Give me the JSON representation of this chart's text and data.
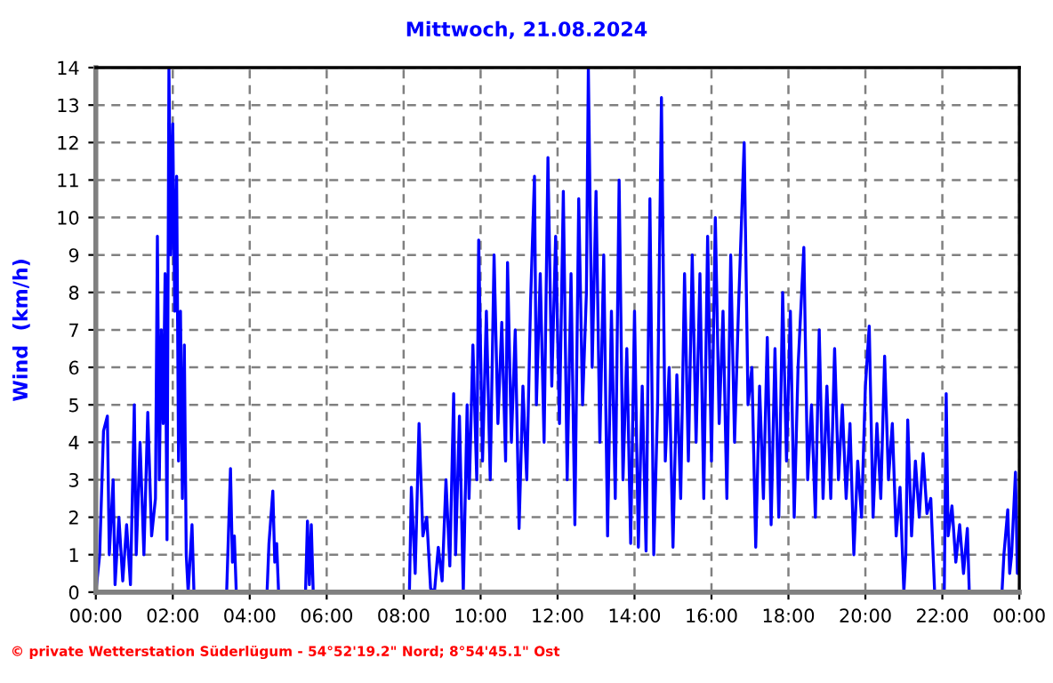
{
  "chart_data": {
    "type": "line",
    "title": "Mittwoch, 21.08.2024",
    "ylabel": "Wind  (km/h)",
    "annotations": [
      "© private Wetterstation Süderlügum - 54°52'19.2\" Nord; 8°54'45.1\" Ost"
    ],
    "xlim": [
      0,
      24
    ],
    "ylim": [
      0,
      14
    ],
    "xticks": [
      {
        "value": 0,
        "label": "00:00"
      },
      {
        "value": 2,
        "label": "02:00"
      },
      {
        "value": 4,
        "label": "04:00"
      },
      {
        "value": 6,
        "label": "06:00"
      },
      {
        "value": 8,
        "label": "08:00"
      },
      {
        "value": 10,
        "label": "10:00"
      },
      {
        "value": 12,
        "label": "12:00"
      },
      {
        "value": 14,
        "label": "14:00"
      },
      {
        "value": 16,
        "label": "16:00"
      },
      {
        "value": 18,
        "label": "18:00"
      },
      {
        "value": 20,
        "label": "20:00"
      },
      {
        "value": 22,
        "label": "22:00"
      },
      {
        "value": 24,
        "label": "00:00"
      }
    ],
    "yticks": [
      0,
      1,
      2,
      3,
      4,
      5,
      6,
      7,
      8,
      9,
      10,
      11,
      12,
      13,
      14
    ],
    "grid": true,
    "marker": "none",
    "line_style": "solid",
    "series": [
      {
        "color": "#0000ff",
        "x": [
          0.0,
          0.1,
          0.2,
          0.3,
          0.35,
          0.45,
          0.5,
          0.6,
          0.7,
          0.8,
          0.9,
          1.0,
          1.05,
          1.15,
          1.25,
          1.35,
          1.45,
          1.55,
          1.6,
          1.65,
          1.7,
          1.75,
          1.8,
          1.85,
          1.9,
          1.95,
          2.0,
          2.05,
          2.1,
          2.15,
          2.2,
          2.25,
          2.3,
          2.35,
          2.4,
          2.5,
          2.55,
          3.4,
          3.5,
          3.55,
          3.6,
          3.65,
          4.45,
          4.5,
          4.6,
          4.65,
          4.7,
          4.75,
          5.45,
          5.5,
          5.55,
          5.6,
          5.65,
          8.15,
          8.2,
          8.3,
          8.4,
          8.5,
          8.6,
          8.7,
          8.8,
          8.9,
          9.0,
          9.1,
          9.2,
          9.3,
          9.35,
          9.45,
          9.55,
          9.65,
          9.7,
          9.8,
          9.9,
          9.95,
          10.05,
          10.15,
          10.25,
          10.35,
          10.45,
          10.55,
          10.65,
          10.7,
          10.8,
          10.9,
          11.0,
          11.1,
          11.2,
          11.3,
          11.4,
          11.45,
          11.55,
          11.65,
          11.75,
          11.85,
          11.95,
          12.05,
          12.15,
          12.25,
          12.35,
          12.45,
          12.55,
          12.65,
          12.75,
          12.8,
          12.9,
          13.0,
          13.1,
          13.2,
          13.3,
          13.4,
          13.5,
          13.6,
          13.7,
          13.8,
          13.9,
          14.0,
          14.1,
          14.2,
          14.3,
          14.4,
          14.5,
          14.6,
          14.7,
          14.8,
          14.9,
          15.0,
          15.1,
          15.2,
          15.3,
          15.4,
          15.5,
          15.6,
          15.7,
          15.8,
          15.9,
          16.0,
          16.1,
          16.2,
          16.3,
          16.4,
          16.5,
          16.6,
          16.7,
          16.85,
          16.95,
          17.05,
          17.15,
          17.25,
          17.35,
          17.45,
          17.55,
          17.65,
          17.75,
          17.85,
          17.95,
          18.05,
          18.15,
          18.25,
          18.4,
          18.5,
          18.6,
          18.7,
          18.8,
          18.9,
          19.0,
          19.1,
          19.2,
          19.3,
          19.4,
          19.5,
          19.6,
          19.7,
          19.8,
          19.9,
          20.0,
          20.1,
          20.2,
          20.3,
          20.4,
          20.5,
          20.6,
          20.7,
          20.8,
          20.9,
          21.0,
          21.05,
          21.1,
          21.2,
          21.3,
          21.4,
          21.5,
          21.6,
          21.7,
          21.8,
          22.05,
          22.1,
          22.15,
          22.25,
          22.35,
          22.45,
          22.55,
          22.65,
          22.7,
          23.55,
          23.6,
          23.7,
          23.75,
          23.8,
          23.9,
          23.95,
          24.0
        ],
        "values": [
          0,
          1,
          4.3,
          4.7,
          1,
          3,
          0.2,
          2,
          0.3,
          1.8,
          0.2,
          5,
          1,
          4,
          1,
          4.8,
          1.5,
          2.5,
          9.5,
          3,
          7,
          4.5,
          8.5,
          1.4,
          14,
          9,
          12.5,
          7.5,
          11.1,
          3.5,
          7.5,
          2.5,
          6.6,
          1,
          0,
          1.8,
          0,
          0,
          3.3,
          0.8,
          1.5,
          0,
          0,
          1.3,
          2.7,
          0.8,
          1.3,
          0,
          0,
          1.9,
          0.2,
          1.8,
          0,
          0,
          2.8,
          0.5,
          4.5,
          1.5,
          2,
          0.1,
          0,
          1.2,
          0.3,
          3,
          0.7,
          5.3,
          1,
          4.7,
          0,
          5,
          2.5,
          6.6,
          3,
          9.4,
          3.5,
          7.5,
          3,
          9,
          4.5,
          7.2,
          3.5,
          8.8,
          4,
          7,
          1.7,
          5.5,
          3,
          7.8,
          11.1,
          5,
          8.5,
          4,
          11.6,
          5.5,
          9.5,
          4.5,
          10.7,
          3,
          8.5,
          1.8,
          10.5,
          5,
          8,
          14,
          6,
          10.7,
          4,
          9,
          1.5,
          7.5,
          2.5,
          11,
          3,
          6.5,
          1.3,
          7.5,
          1.2,
          5.5,
          1.1,
          10.5,
          1,
          5,
          13.2,
          3.5,
          6,
          1.2,
          5.8,
          2.5,
          8.5,
          3.5,
          9,
          4,
          8.5,
          2.5,
          9.5,
          3.5,
          10,
          4.5,
          7.5,
          2.5,
          9,
          4,
          7.5,
          12,
          5,
          6,
          1.2,
          5.5,
          2.5,
          6.8,
          1.8,
          6.5,
          2,
          8,
          3.5,
          7.5,
          2,
          6,
          9.2,
          3,
          5,
          2,
          7,
          2.5,
          5.5,
          2.5,
          6.5,
          3,
          5,
          2.5,
          4.5,
          1,
          3.5,
          2,
          5.5,
          7.1,
          2,
          4.5,
          2.5,
          6.3,
          3,
          4.5,
          1.5,
          2.8,
          0,
          1,
          4.6,
          1.5,
          3.5,
          2,
          3.7,
          2.1,
          2.5,
          0,
          0,
          5.3,
          1.5,
          2.3,
          0.8,
          1.8,
          0.5,
          1.7,
          0,
          0,
          1,
          2.2,
          0.5,
          1,
          3.2,
          0.5,
          1
        ]
      }
    ]
  }
}
